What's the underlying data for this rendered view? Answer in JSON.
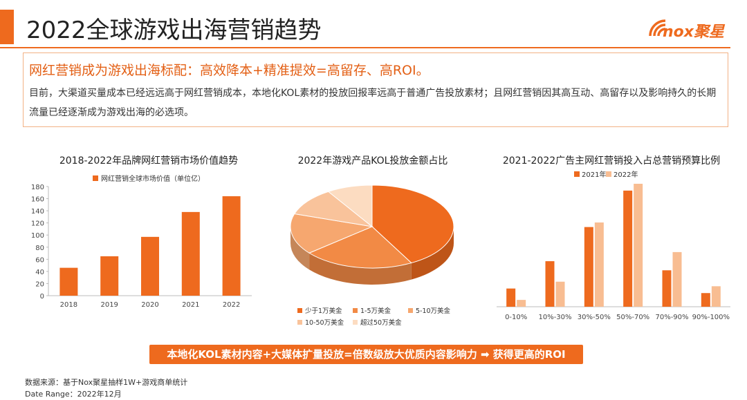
{
  "header": {
    "title": "2022全球游戏出海营销趋势",
    "logo_text": "nox聚星"
  },
  "intro": {
    "heading": "网红营销成为游戏出海标配：高效降本+精准提效=高留存、高ROI。",
    "body": "目前，大渠道买量成本已经远远高于网红营销成本，本地化KOL素材的投放回报率远高于普通广告投放素材；且网红营销因其高互动、高留存以及影响持久的长期流量已经逐渐成为游戏出海的必选项。"
  },
  "colors": {
    "accent": "#ee6a1e",
    "series_light": "#f8bd92"
  },
  "chart_data": [
    {
      "type": "bar",
      "title": "2018-2022年品牌网红营销市场价值趋势",
      "categories": [
        "2018",
        "2019",
        "2020",
        "2021",
        "2022"
      ],
      "series": [
        {
          "name": "网红营销全球市场价值（单位亿）",
          "values": [
            46,
            65,
            97,
            138,
            164
          ]
        }
      ],
      "yticks": [
        "0",
        "20",
        "40",
        "60",
        "80",
        "100",
        "120",
        "140",
        "160",
        "180"
      ],
      "ylim": [
        0,
        180
      ],
      "legend": "top",
      "grid": false
    },
    {
      "type": "pie",
      "title": "2022年游戏产品KOL投放金额占比",
      "labels": [
        "少于1万美金",
        "1-5万美金",
        "5-10万美金",
        "10-50万美金",
        "超过50万美金"
      ],
      "values": [
        42,
        22,
        16,
        11,
        9
      ],
      "colors": [
        "#ee6a1e",
        "#f28a45",
        "#f6a76f",
        "#f9c39b",
        "#fcdcc1"
      ],
      "legend": "bottom"
    },
    {
      "type": "bar",
      "title": "2021-2022广告主网红营销投入占总营销预算比例",
      "categories": [
        "0-10%",
        "10%-30%",
        "30%-50%",
        "50%-70%",
        "70%-90%",
        "90%-100%"
      ],
      "series": [
        {
          "name": "2021年",
          "values": [
            8,
            20,
            35,
            51,
            16,
            6
          ]
        },
        {
          "name": "2022年",
          "values": [
            3,
            11,
            37,
            54,
            24,
            9
          ]
        }
      ],
      "legend": "top",
      "grid": false
    }
  ],
  "banner": "本地化KOL素材内容+大媒体扩量投放=倍数级放大优质内容影响力 ➡ 获得更高的ROI",
  "footer": {
    "source": "数据来源：基于Nox聚星抽样1W+游戏商单统计",
    "date_range": "Date Range：2022年12月"
  }
}
